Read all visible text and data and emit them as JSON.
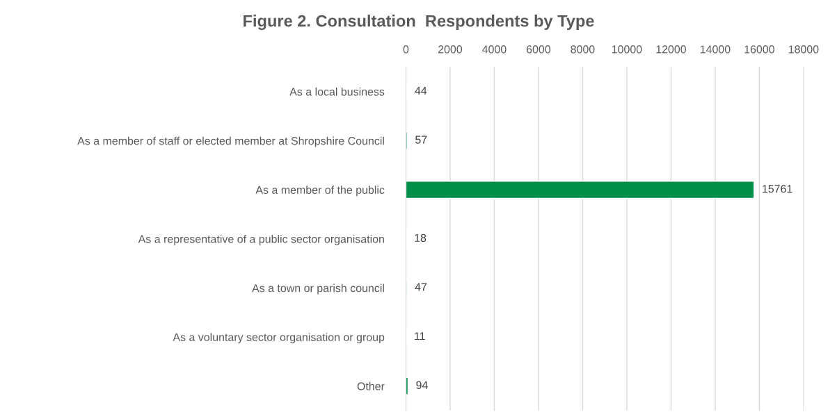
{
  "chart_data": {
    "type": "bar",
    "orientation": "horizontal",
    "title": "Figure 2. Consultation  Respondents by Type",
    "categories": [
      "As a local business",
      "As a member of staff or elected member at Shropshire Council",
      "As a member of the public",
      "As a representative of a public sector organisation",
      "As a town or parish council",
      "As a voluntary sector organisation or group",
      "Other"
    ],
    "values": [
      44,
      57,
      15761,
      18,
      47,
      11,
      94
    ],
    "color": "#00904a",
    "xlim": [
      0,
      18000
    ],
    "xticks": [
      0,
      2000,
      4000,
      6000,
      8000,
      10000,
      12000,
      14000,
      16000,
      18000
    ],
    "grid": "x",
    "data_labels": true
  }
}
